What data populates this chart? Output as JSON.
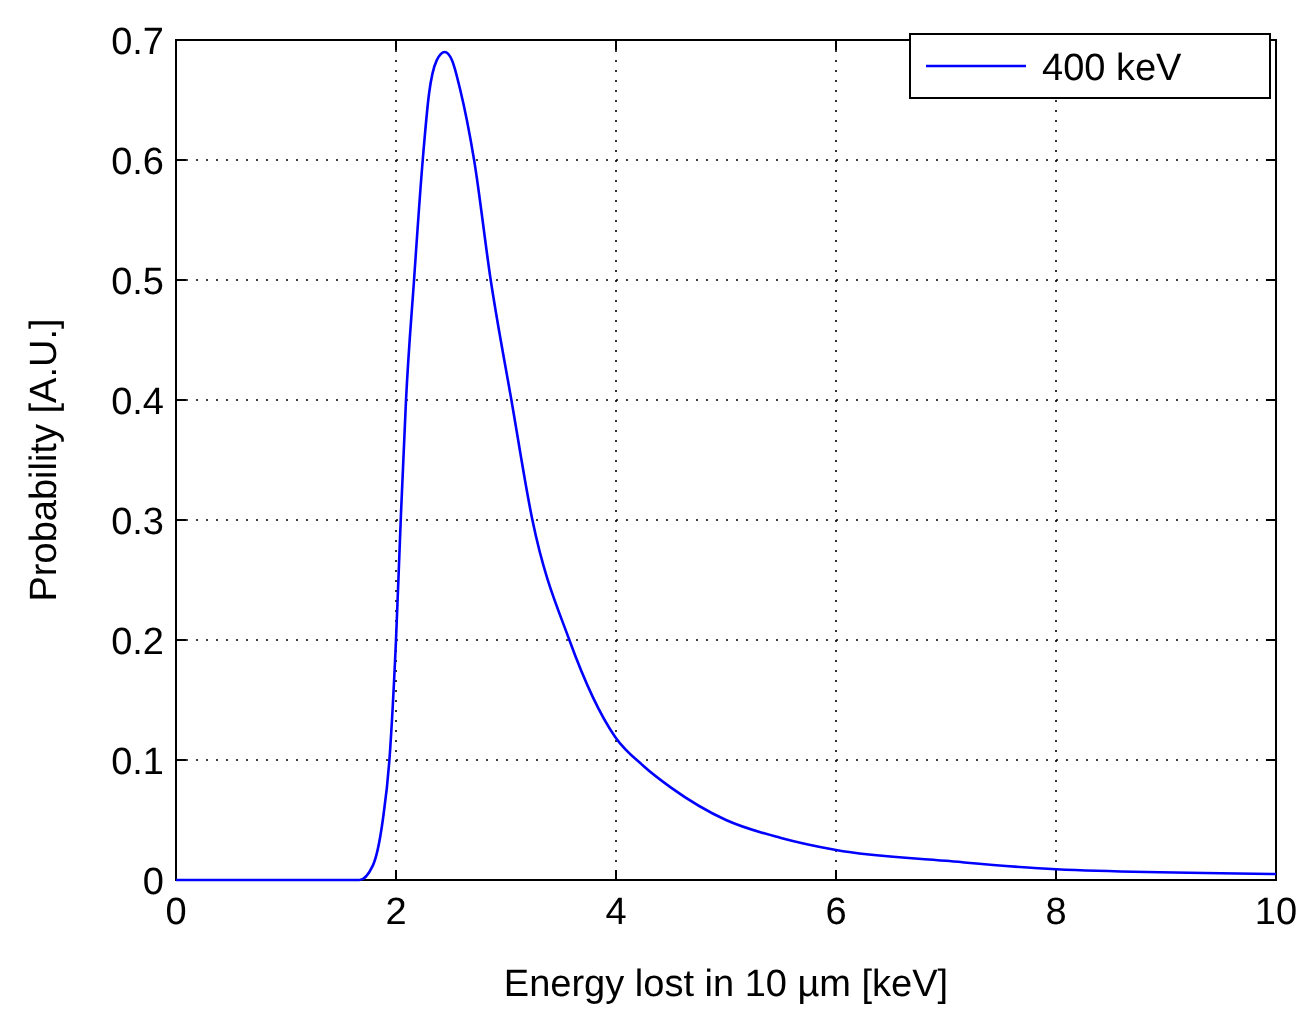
{
  "chart_data": {
    "type": "line",
    "xlabel": "Energy lost in 10 µm [keV]",
    "ylabel": "Probability [A.U.]",
    "xlim": [
      0,
      10
    ],
    "ylim": [
      0,
      0.7
    ],
    "xticks": [
      0,
      2,
      4,
      6,
      8,
      10
    ],
    "yticks": [
      0,
      0.1,
      0.2,
      0.3,
      0.4,
      0.5,
      0.6,
      0.7
    ],
    "grid": true,
    "legend": "top right",
    "marker": "none",
    "line_style": "solid",
    "series": [
      {
        "name": "400 keV",
        "color": "#0000ff",
        "x": [
          0,
          1.5,
          1.667,
          1.789,
          1.88,
          1.94,
          2.0,
          2.043,
          2.091,
          2.164,
          2.243,
          2.3,
          2.37,
          2.443,
          2.51,
          2.58,
          2.71,
          2.861,
          3.049,
          3.24,
          3.576,
          3.994,
          4.25,
          4.5,
          5,
          5.5,
          6,
          7,
          8,
          10
        ],
        "values": [
          0,
          0,
          0,
          0.012,
          0.05,
          0.1,
          0.2,
          0.3,
          0.4,
          0.5,
          0.6,
          0.655,
          0.683,
          0.69,
          0.683,
          0.66,
          0.6,
          0.5,
          0.4,
          0.3,
          0.2,
          0.119,
          0.095,
          0.077,
          0.05,
          0.035,
          0.025,
          0.016,
          0.009,
          0.005
        ]
      }
    ]
  }
}
